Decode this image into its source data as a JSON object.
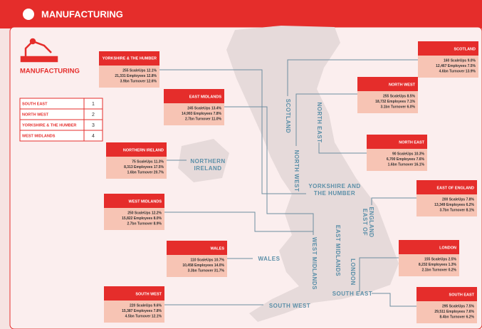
{
  "header": {
    "title": "MANUFACTURING"
  },
  "sidebar": {
    "title": "MANUFACTURING",
    "ranking": [
      [
        "SOUTH EAST",
        1
      ],
      [
        "NORTH WEST",
        2
      ],
      [
        "YORKSHIRE & THE HUMBER",
        3
      ],
      [
        "WEST MIDLANDS",
        4
      ]
    ]
  },
  "regions": [
    {
      "name": "YORKSHIRE & THE HUMBER",
      "lines": [
        "255 ScaleUps 12.1%",
        "21,331 Employees 12.8%",
        "3.9bn Turnover 12.6%"
      ]
    },
    {
      "name": "EAST MIDLANDS",
      "lines": [
        "245 ScaleUps 13.4%",
        "14,993 Employees 7.8%",
        "2.7bn Turnover 11.0%"
      ]
    },
    {
      "name": "NORTHERN IRELAND",
      "lines": [
        "75 ScaleUps 11.3%",
        "8,313 Employees 17.5%",
        "1.6bn Turnover 20.7%"
      ]
    },
    {
      "name": "WEST MIDLANDS",
      "lines": [
        "250 ScaleUps 12.2%",
        "15,822 Employees 8.0%",
        "2.7bn Turnover 8.9%"
      ]
    },
    {
      "name": "WALES",
      "lines": [
        "110 ScaleUps 10.7%",
        "10,458 Employees 14.0%",
        "3.3bn Turnover 31.7%"
      ]
    },
    {
      "name": "SOUTH WEST",
      "lines": [
        "220 ScaleUps 9.6%",
        "15,387 Employees 7.8%",
        "4.5bn Turnover 12.1%"
      ]
    },
    {
      "name": "SCOTLAND",
      "lines": [
        "160 ScaleUps 9.0%",
        "12,467 Employees 7.5%",
        "4.6bn Turnover 13.9%"
      ]
    },
    {
      "name": "NORTH WEST",
      "lines": [
        "255 ScaleUps 8.5%",
        "18,732 Employees 7.1%",
        "3.1bn Turnover 6.0%"
      ]
    },
    {
      "name": "NORTH EAST",
      "lines": [
        "90 ScaleUps 10.3%",
        "6,700 Employees 7.6%",
        "1.6bn Turnover 16.1%"
      ]
    },
    {
      "name": "EAST OF ENGLAND",
      "lines": [
        "200 ScaleUps 7.8%",
        "13,349 Employees 6.2%",
        "3.7bn Turnover 8.1%"
      ]
    },
    {
      "name": "LONDON",
      "lines": [
        "155 ScaleUps 2.5%",
        "8,232 Employees 1.3%",
        "2.1bn Turnover 0.2%"
      ]
    },
    {
      "name": "SOUTH EAST",
      "lines": [
        "295 ScaleUps 7.5%",
        "29,511 Employees 7.6%",
        "8.4bn Turnover 6.2%"
      ]
    }
  ],
  "map_labels": [
    "SCOTLAND",
    "NORTH EAST",
    "NORTH WEST",
    "YORKSHIRE AND",
    "THE HUMBER",
    "NORTHERN",
    "IRELAND",
    "EAST OF",
    "ENGLAND",
    "EAST MIDLANDS",
    "WEST MIDLANDS",
    "WALES",
    "LONDON",
    "SOUTH EAST",
    "SOUTH WEST"
  ]
}
